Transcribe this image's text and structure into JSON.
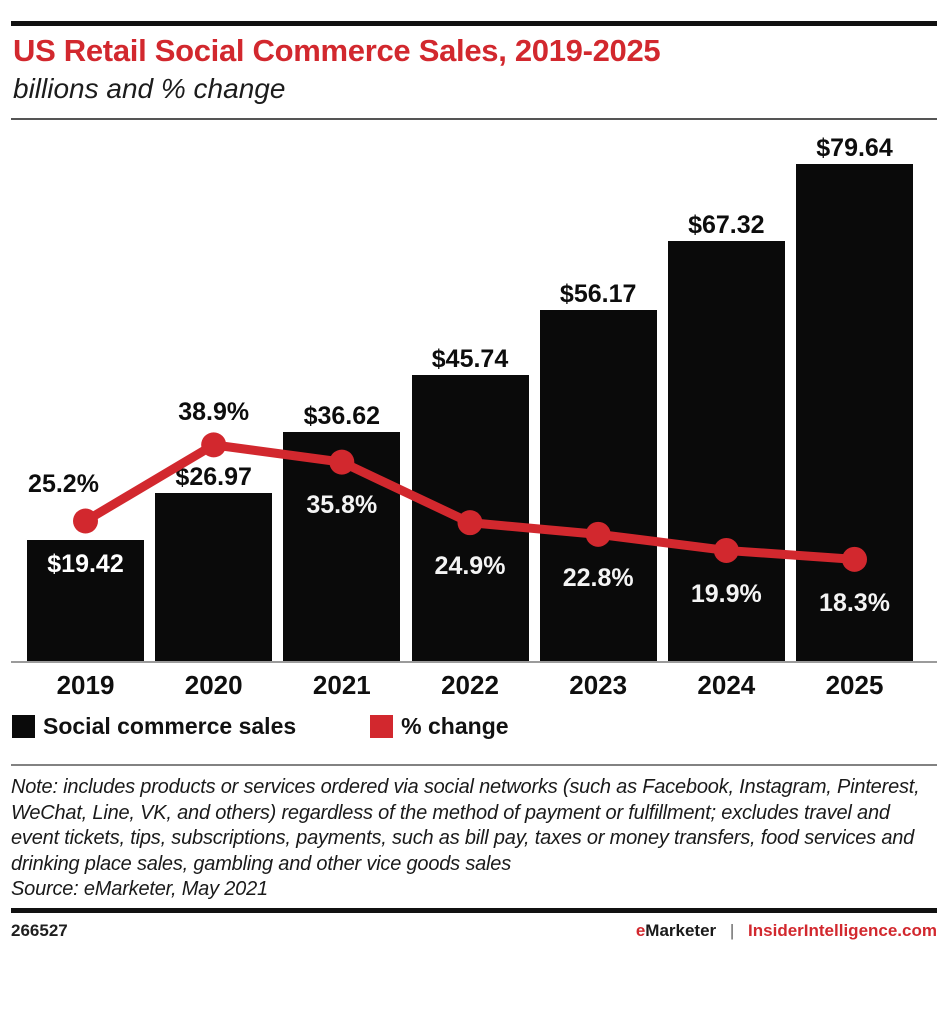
{
  "header": {
    "title": "US Retail Social Commerce Sales, 2019-2025",
    "subtitle": "billions and % change"
  },
  "chart_data": {
    "type": "bar",
    "title": "US Retail Social Commerce Sales, 2019-2025",
    "subtitle": "billions and % change",
    "categories": [
      "2019",
      "2020",
      "2021",
      "2022",
      "2023",
      "2024",
      "2025"
    ],
    "series": [
      {
        "name": "Social commerce sales",
        "type": "bar",
        "unit": "billions of US dollars",
        "color": "#0a0a0a",
        "values": [
          19.42,
          26.97,
          36.62,
          45.74,
          56.17,
          67.32,
          79.64
        ],
        "labels": [
          "$19.42",
          "$26.97",
          "$36.62",
          "$45.74",
          "$56.17",
          "$67.32",
          "$79.64"
        ],
        "label_positions": [
          "inside",
          "above",
          "above",
          "above",
          "above",
          "above",
          "above"
        ],
        "axis_range": [
          0,
          80
        ]
      },
      {
        "name": "% change",
        "type": "line",
        "unit": "percent",
        "color": "#d2282e",
        "values": [
          25.2,
          38.9,
          35.8,
          24.9,
          22.8,
          19.9,
          18.3
        ],
        "labels": [
          "25.2%",
          "38.9%",
          "35.8%",
          "24.9%",
          "22.8%",
          "19.9%",
          "18.3%"
        ],
        "label_positions": [
          "above-left",
          "above",
          "below",
          "below",
          "below",
          "below",
          "below"
        ],
        "axis_range": [
          0,
          90
        ]
      }
    ],
    "grid": false,
    "legend_position": "bottom",
    "xlabel": "",
    "ylabel": ""
  },
  "legend": [
    {
      "label": "Social commerce sales",
      "color": "#0a0a0a"
    },
    {
      "label": "% change",
      "color": "#d2282e"
    }
  ],
  "note": {
    "text": "Note: includes products or services ordered via social networks (such as Facebook, Instagram, Pinterest, WeChat, Line, VK, and others) regardless of the method of payment or fulfillment; excludes travel and event tickets, tips, subscriptions, payments, such as bill pay, taxes or money transfers, food services and drinking place sales, gambling and other vice goods sales",
    "source": "Source: eMarketer, May 2021"
  },
  "footer": {
    "chart_id": "266527",
    "brand_first_letter": "e",
    "brand_rest": "Marketer",
    "separator": "|",
    "site": "InsiderIntelligence.com"
  },
  "colors": {
    "accent_red": "#d2282e",
    "bar_black": "#0a0a0a",
    "axis_gray": "#9b9b9b"
  }
}
